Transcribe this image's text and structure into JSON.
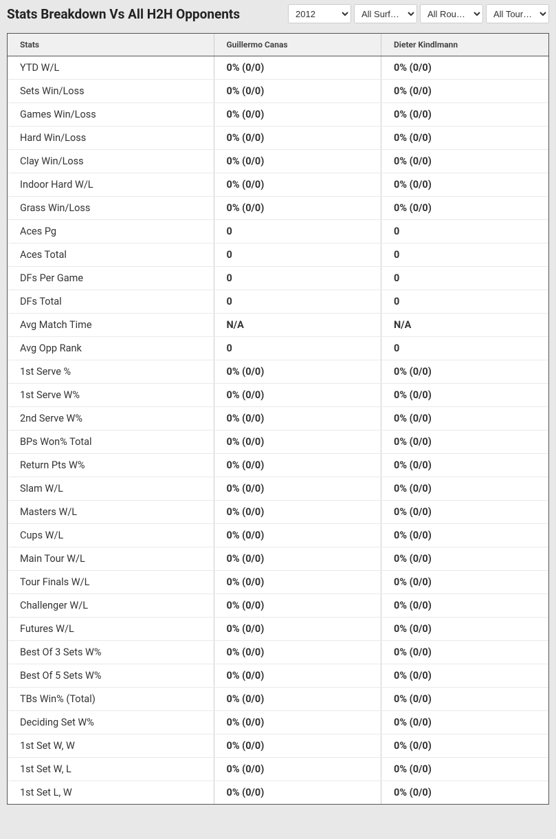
{
  "header": {
    "title": "Stats Breakdown Vs All H2H Opponents"
  },
  "filters": {
    "year": "2012",
    "surface": "All Surf…",
    "round": "All Rou…",
    "tournament": "All Tour…"
  },
  "table": {
    "columns": [
      "Stats",
      "Guillermo Canas",
      "Dieter Kindlmann"
    ],
    "rows": [
      {
        "stat": "YTD W/L",
        "p1": "0% (0/0)",
        "p2": "0% (0/0)"
      },
      {
        "stat": "Sets Win/Loss",
        "p1": "0% (0/0)",
        "p2": "0% (0/0)"
      },
      {
        "stat": "Games Win/Loss",
        "p1": "0% (0/0)",
        "p2": "0% (0/0)"
      },
      {
        "stat": "Hard Win/Loss",
        "p1": "0% (0/0)",
        "p2": "0% (0/0)"
      },
      {
        "stat": "Clay Win/Loss",
        "p1": "0% (0/0)",
        "p2": "0% (0/0)"
      },
      {
        "stat": "Indoor Hard W/L",
        "p1": "0% (0/0)",
        "p2": "0% (0/0)"
      },
      {
        "stat": "Grass Win/Loss",
        "p1": "0% (0/0)",
        "p2": "0% (0/0)"
      },
      {
        "stat": "Aces Pg",
        "p1": "0",
        "p2": "0"
      },
      {
        "stat": "Aces Total",
        "p1": "0",
        "p2": "0"
      },
      {
        "stat": "DFs Per Game",
        "p1": "0",
        "p2": "0"
      },
      {
        "stat": "DFs Total",
        "p1": "0",
        "p2": "0"
      },
      {
        "stat": "Avg Match Time",
        "p1": "N/A",
        "p2": "N/A"
      },
      {
        "stat": "Avg Opp Rank",
        "p1": "0",
        "p2": "0"
      },
      {
        "stat": "1st Serve %",
        "p1": "0% (0/0)",
        "p2": "0% (0/0)"
      },
      {
        "stat": "1st Serve W%",
        "p1": "0% (0/0)",
        "p2": "0% (0/0)"
      },
      {
        "stat": "2nd Serve W%",
        "p1": "0% (0/0)",
        "p2": "0% (0/0)"
      },
      {
        "stat": "BPs Won% Total",
        "p1": "0% (0/0)",
        "p2": "0% (0/0)"
      },
      {
        "stat": "Return Pts W%",
        "p1": "0% (0/0)",
        "p2": "0% (0/0)"
      },
      {
        "stat": "Slam W/L",
        "p1": "0% (0/0)",
        "p2": "0% (0/0)"
      },
      {
        "stat": "Masters W/L",
        "p1": "0% (0/0)",
        "p2": "0% (0/0)"
      },
      {
        "stat": "Cups W/L",
        "p1": "0% (0/0)",
        "p2": "0% (0/0)"
      },
      {
        "stat": "Main Tour W/L",
        "p1": "0% (0/0)",
        "p2": "0% (0/0)"
      },
      {
        "stat": "Tour Finals W/L",
        "p1": "0% (0/0)",
        "p2": "0% (0/0)"
      },
      {
        "stat": "Challenger W/L",
        "p1": "0% (0/0)",
        "p2": "0% (0/0)"
      },
      {
        "stat": "Futures W/L",
        "p1": "0% (0/0)",
        "p2": "0% (0/0)"
      },
      {
        "stat": "Best Of 3 Sets W%",
        "p1": "0% (0/0)",
        "p2": "0% (0/0)"
      },
      {
        "stat": "Best Of 5 Sets W%",
        "p1": "0% (0/0)",
        "p2": "0% (0/0)"
      },
      {
        "stat": "TBs Win% (Total)",
        "p1": "0% (0/0)",
        "p2": "0% (0/0)"
      },
      {
        "stat": "Deciding Set W%",
        "p1": "0% (0/0)",
        "p2": "0% (0/0)"
      },
      {
        "stat": "1st Set W, W",
        "p1": "0% (0/0)",
        "p2": "0% (0/0)"
      },
      {
        "stat": "1st Set W, L",
        "p1": "0% (0/0)",
        "p2": "0% (0/0)"
      },
      {
        "stat": "1st Set L, W",
        "p1": "0% (0/0)",
        "p2": "0% (0/0)"
      }
    ]
  },
  "styles": {
    "body_bg": "#e8e8e8",
    "table_border": "#555555",
    "header_bg": "#f0f0f0",
    "row_border": "#e9e9e9",
    "col_border": "#cccccc",
    "title_fontsize": 19,
    "header_fontsize": 12,
    "cell_fontsize": 14.5
  }
}
